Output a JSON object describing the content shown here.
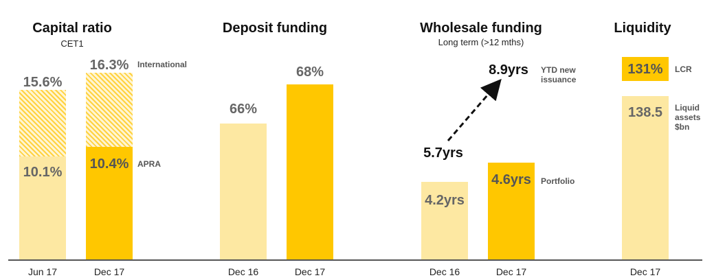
{
  "panels": {
    "capital": {
      "title": "Capital ratio",
      "subtitle": "CET1"
    },
    "deposit": {
      "title": "Deposit funding"
    },
    "wholesale": {
      "title": "Wholesale funding",
      "subtitle": "Long term (>12 mths)"
    },
    "liquidity": {
      "title": "Liquidity"
    }
  },
  "colors": {
    "light": "#FDE8A2",
    "dark": "#FFC700",
    "hatch": "#FFD23F"
  },
  "chart_data": [
    {
      "type": "bar",
      "title": "Capital ratio",
      "subtitle": "CET1",
      "categories": [
        "Jun 17",
        "Dec 17"
      ],
      "series": [
        {
          "name": "APRA",
          "values": [
            10.1,
            10.4
          ],
          "labels": [
            "10.1%",
            "10.4%"
          ]
        },
        {
          "name": "International",
          "values": [
            15.6,
            16.3
          ],
          "labels": [
            "15.6%",
            "16.3%"
          ]
        }
      ]
    },
    {
      "type": "bar",
      "title": "Deposit funding",
      "categories": [
        "Dec 16",
        "Dec 17"
      ],
      "values": [
        66,
        68
      ],
      "labels": [
        "66%",
        "68%"
      ]
    },
    {
      "type": "bar",
      "title": "Wholesale funding",
      "subtitle": "Long term (>12 mths)",
      "categories": [
        "Dec 16",
        "Dec 17"
      ],
      "series": [
        {
          "name": "Portfolio",
          "values": [
            4.2,
            4.6
          ],
          "labels": [
            "4.2yrs",
            "4.6yrs"
          ]
        },
        {
          "name": "YTD new issuance",
          "values": [
            5.7,
            8.9
          ],
          "labels": [
            "5.7yrs",
            "8.9yrs"
          ]
        }
      ]
    },
    {
      "type": "bar",
      "title": "Liquidity",
      "categories": [
        "Dec 17"
      ],
      "series": [
        {
          "name": "LCR",
          "values": [
            131
          ],
          "labels": [
            "131%"
          ]
        },
        {
          "name": "Liquid assets $bn",
          "values": [
            138.5
          ],
          "labels": [
            "138.5"
          ]
        }
      ]
    }
  ],
  "annotations": {
    "international": "International",
    "apra": "APRA",
    "ytd_line1": "YTD new",
    "ytd_line2": "issuance",
    "portfolio": "Portfolio",
    "lcr": "LCR",
    "liquid_line1": "Liquid",
    "liquid_line2": "assets",
    "liquid_line3": "$bn"
  }
}
